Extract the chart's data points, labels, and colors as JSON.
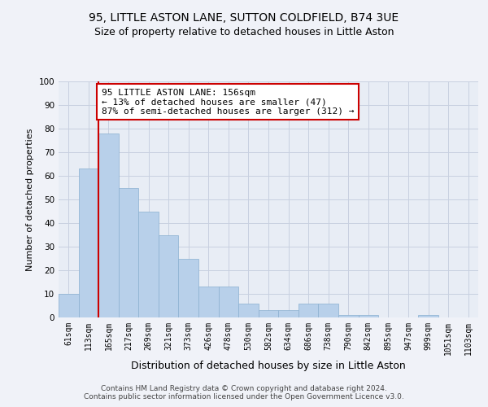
{
  "title": "95, LITTLE ASTON LANE, SUTTON COLDFIELD, B74 3UE",
  "subtitle": "Size of property relative to detached houses in Little Aston",
  "xlabel": "Distribution of detached houses by size in Little Aston",
  "ylabel": "Number of detached properties",
  "categories": [
    "61sqm",
    "113sqm",
    "165sqm",
    "217sqm",
    "269sqm",
    "321sqm",
    "373sqm",
    "426sqm",
    "478sqm",
    "530sqm",
    "582sqm",
    "634sqm",
    "686sqm",
    "738sqm",
    "790sqm",
    "842sqm",
    "895sqm",
    "947sqm",
    "999sqm",
    "1051sqm",
    "1103sqm"
  ],
  "values": [
    10,
    63,
    78,
    55,
    45,
    35,
    25,
    13,
    13,
    6,
    3,
    3,
    6,
    6,
    1,
    1,
    0,
    0,
    1,
    0,
    0
  ],
  "bar_color": "#b8d0ea",
  "bar_edge_color": "#8ab0d0",
  "vline_color": "#cc0000",
  "annotation_text": "95 LITTLE ASTON LANE: 156sqm\n← 13% of detached houses are smaller (47)\n87% of semi-detached houses are larger (312) →",
  "annotation_box_color": "#ffffff",
  "annotation_box_edge": "#cc0000",
  "ylim": [
    0,
    100
  ],
  "yticks": [
    0,
    10,
    20,
    30,
    40,
    50,
    60,
    70,
    80,
    90,
    100
  ],
  "grid_color": "#c8d0e0",
  "bg_color": "#e8edf5",
  "fig_color": "#f0f2f8",
  "footer": "Contains HM Land Registry data © Crown copyright and database right 2024.\nContains public sector information licensed under the Open Government Licence v3.0.",
  "title_fontsize": 10,
  "subtitle_fontsize": 9,
  "xlabel_fontsize": 9,
  "ylabel_fontsize": 8,
  "tick_fontsize": 7,
  "annotation_fontsize": 8,
  "footer_fontsize": 6.5
}
